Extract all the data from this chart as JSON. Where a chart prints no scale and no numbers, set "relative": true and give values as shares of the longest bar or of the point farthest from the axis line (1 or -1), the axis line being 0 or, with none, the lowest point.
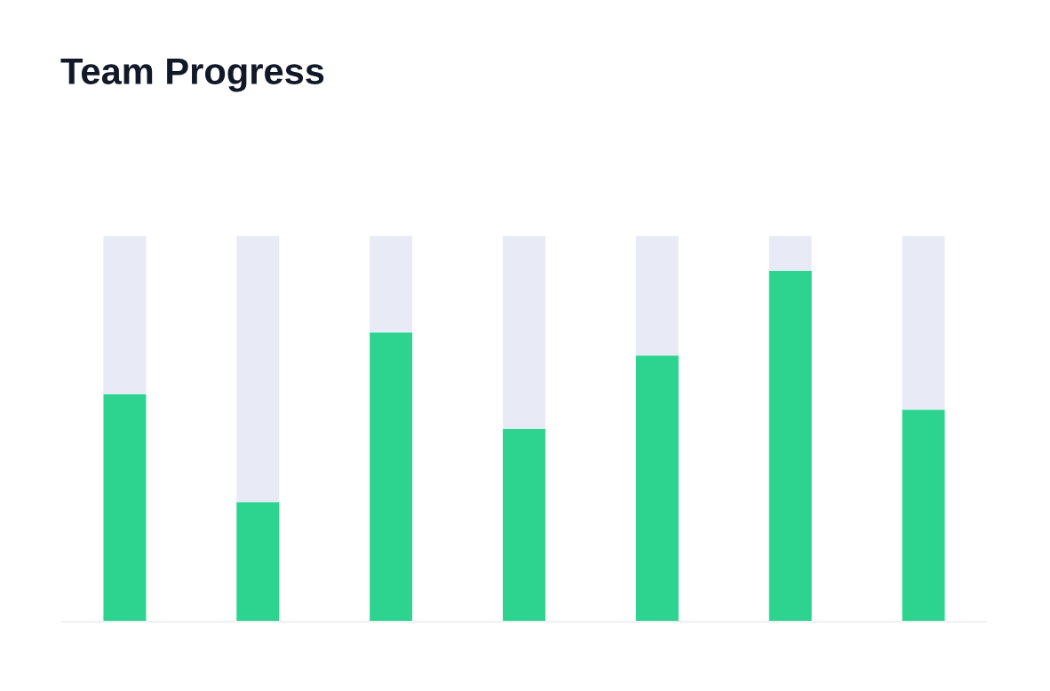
{
  "chart_data": {
    "type": "bar",
    "title": "Team Progress",
    "relative": true,
    "stacked": true,
    "categories": [
      null,
      null,
      null,
      null,
      null,
      null,
      null
    ],
    "series": [
      {
        "color": "#2dd48f",
        "values": [
          0.59,
          0.31,
          0.75,
          0.5,
          0.69,
          0.91,
          0.55
        ]
      },
      {
        "color": "#e8ebf6",
        "values": [
          0.41,
          0.69,
          0.25,
          0.5,
          0.31,
          0.09,
          0.45
        ]
      }
    ],
    "grid": false,
    "legend": false
  }
}
